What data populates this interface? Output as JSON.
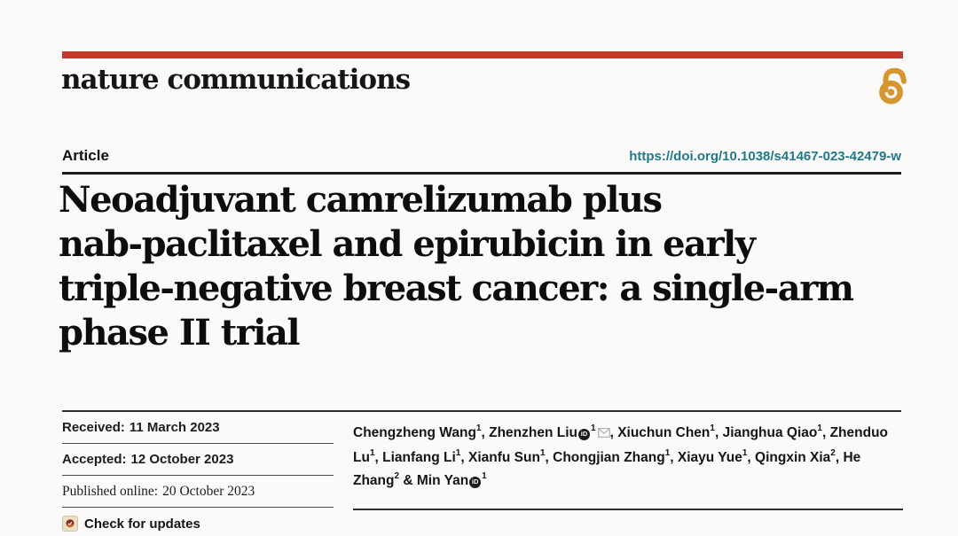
{
  "masthead": {
    "journal": "nature communications",
    "bar_color": "#c23a2c",
    "open_access_color": "#d6952e"
  },
  "article_header": {
    "kicker": "Article",
    "doi": "https://doi.org/10.1038/s41467-023-42479-w",
    "doi_color": "#20798c"
  },
  "title": {
    "full": "Neoadjuvant camrelizumab plus nab-paclitaxel and epirubicin in early triple-negative breast cancer: a single-arm phase II trial",
    "lines": [
      "Neoadjuvant camrelizumab plus",
      "nab-paclitaxel and epirubicin in early",
      "triple-negative breast cancer: a single-arm",
      "phase II trial"
    ]
  },
  "dates": {
    "received_label": "Received:",
    "received": "11 March 2023",
    "accepted_label": "Accepted:",
    "accepted": "12 October 2023",
    "published_label": "Published online:",
    "published": "20 October 2023"
  },
  "check_updates": {
    "label": "Check for updates"
  },
  "authors": [
    {
      "name": "Chengzheng Wang",
      "sup": "1"
    },
    {
      "name": "Zhenzhen Liu",
      "sup": "1",
      "orcid": true,
      "email": true
    },
    {
      "name": "Xiuchun Chen",
      "sup": "1"
    },
    {
      "name": "Jianghua Qiao",
      "sup": "1"
    },
    {
      "name": "Zhenduo Lu",
      "sup": "1"
    },
    {
      "name": "Lianfang Li",
      "sup": "1"
    },
    {
      "name": "Xianfu Sun",
      "sup": "1"
    },
    {
      "name": "Chongjian Zhang",
      "sup": "1"
    },
    {
      "name": "Xiayu Yue",
      "sup": "1"
    },
    {
      "name": "Qingxin Xia",
      "sup": "2"
    },
    {
      "name": "He Zhang",
      "sup": "2"
    },
    {
      "name": "Min Yan",
      "sup": "1",
      "orcid": true
    }
  ]
}
